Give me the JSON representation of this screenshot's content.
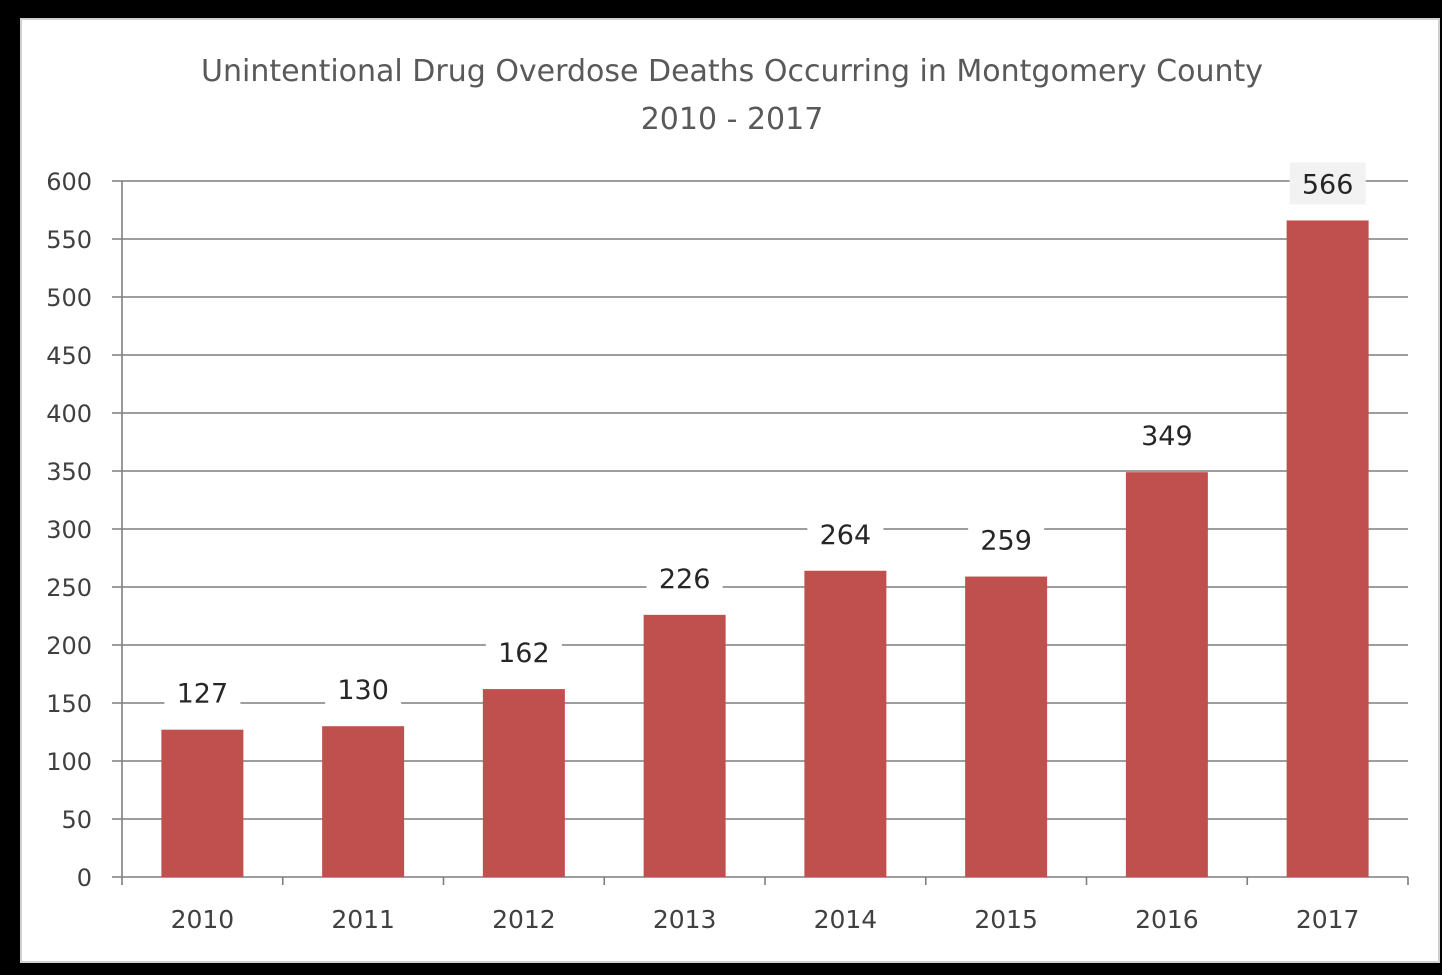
{
  "chart_data": {
    "type": "bar",
    "title": "Unintentional Drug Overdose Deaths Occurring in Montgomery County",
    "subtitle": "2010 - 2017",
    "categories": [
      "2010",
      "2011",
      "2012",
      "2013",
      "2014",
      "2015",
      "2016",
      "2017"
    ],
    "values": [
      127,
      130,
      162,
      226,
      264,
      259,
      349,
      566
    ],
    "data_labels": [
      "127",
      "130",
      "162",
      "226",
      "264",
      "259",
      "349",
      "566"
    ],
    "ylim": [
      0,
      600
    ],
    "yticks": [
      "0",
      "50",
      "100",
      "150",
      "200",
      "250",
      "300",
      "350",
      "400",
      "450",
      "500",
      "550",
      "600"
    ],
    "ytick_values": [
      0,
      50,
      100,
      150,
      200,
      250,
      300,
      350,
      400,
      450,
      500,
      550,
      600
    ],
    "xlabel": "",
    "ylabel": "",
    "grid": true,
    "legend": "none",
    "colors": {
      "bar": "#c0504d",
      "grid": "#7f7f7f",
      "label_bg": "#f2f2f2"
    }
  }
}
